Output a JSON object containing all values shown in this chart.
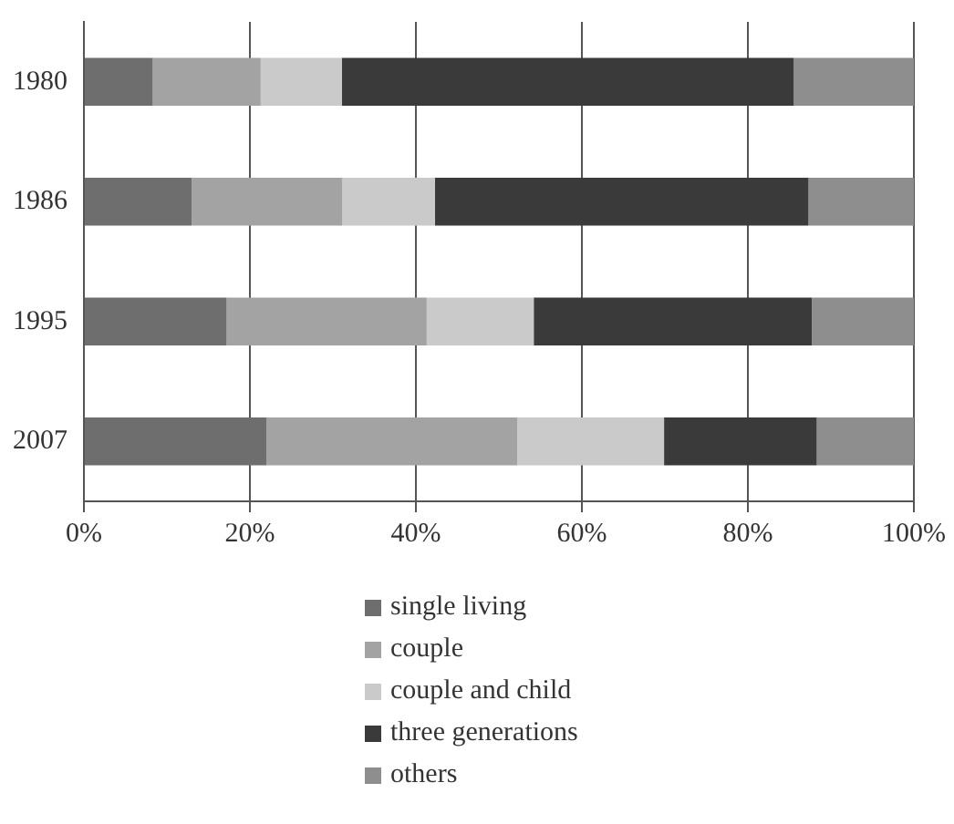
{
  "chart_data": {
    "type": "bar",
    "orientation": "horizontal",
    "stacked": true,
    "categories": [
      "1980",
      "1986",
      "1995",
      "2007"
    ],
    "series": [
      {
        "name": "single living",
        "color": "#6e6e6e",
        "values": [
          8.3,
          13.0,
          17.2,
          22.0
        ]
      },
      {
        "name": "couple",
        "color": "#a3a3a3",
        "values": [
          13.0,
          18.1,
          24.1,
          30.2
        ]
      },
      {
        "name": "couple and child",
        "color": "#cacaca",
        "values": [
          9.8,
          11.2,
          12.9,
          17.7
        ]
      },
      {
        "name": "three generations",
        "color": "#3a3a3a",
        "values": [
          54.4,
          45.0,
          33.5,
          18.4
        ]
      },
      {
        "name": "others",
        "color": "#8e8e8e",
        "values": [
          14.5,
          12.7,
          12.3,
          11.7
        ]
      }
    ],
    "xlim": [
      0,
      100
    ],
    "xticks": [
      {
        "value": 0,
        "label": "0%"
      },
      {
        "value": 20,
        "label": "20%"
      },
      {
        "value": 40,
        "label": "40%"
      },
      {
        "value": 60,
        "label": "60%"
      },
      {
        "value": 80,
        "label": "80%"
      },
      {
        "value": 100,
        "label": "100%"
      }
    ],
    "grid": "x",
    "legend": "bottom"
  }
}
